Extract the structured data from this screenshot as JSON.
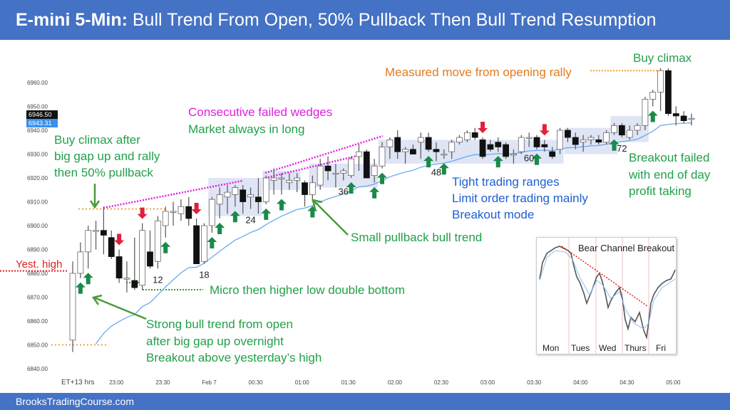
{
  "title": {
    "bold": "E-mini 5-Min:",
    "rest": " Bull Trend From Open, 50% Pullback Then Bull Trend Resumption"
  },
  "footer": "BrooksTradingCourse.com",
  "price_tags": {
    "last": "6946.50",
    "ema": "6943.31"
  },
  "colors": {
    "bull_arrow": "#1a8a4a",
    "bear_arrow": "#e0203a",
    "ema": "#6aaaf0",
    "shade": "#dfe5f5",
    "accent": "#4472c4"
  },
  "annotations": {
    "buy_climax_top": "Buy climax",
    "measured_move": "Measured move from opening rally",
    "wedges1": "Consecutive failed wedges",
    "wedges2": "Market always in long",
    "bc_after1": "Buy climax after",
    "bc_after2": "big gap up and rally",
    "bc_after3": "then 50% pullback",
    "yest_high": "Yest. high",
    "micro": "Micro then higher low double bottom",
    "strong1": "Strong bull trend from open",
    "strong2": "after big gap up overnight",
    "strong3": "Breakout above yesterday’s high",
    "spb": "Small pullback bull trend",
    "tight1": "Tight trading ranges",
    "tight2": "Limit order trading mainly",
    "tight3": "Breakout mode",
    "bo1": "Breakout failed",
    "bo2": "with end of day",
    "bo3": "profit taking"
  },
  "inset": {
    "title": "Bear Channel Breakout",
    "days": [
      "Mon",
      "Tues",
      "Wed",
      "Thurs",
      "Fri"
    ]
  },
  "chart_data": {
    "type": "candlestick",
    "title": "E-mini 5-Min",
    "ylim": [
      6835,
      6968
    ],
    "yticks": [
      "6840.00",
      "6850.00",
      "6860.00",
      "6870.00",
      "6880.00",
      "6890.00",
      "6900.00",
      "6910.00",
      "6920.00",
      "6930.00",
      "6940.00",
      "6950.00",
      "6960.00"
    ],
    "xlabel": "ET+13 hrs",
    "xticks": [
      {
        "bar": 6,
        "label": "23:00"
      },
      {
        "bar": 12,
        "label": "23:30"
      },
      {
        "bar": 18,
        "label": "Feb 7"
      },
      {
        "bar": 24,
        "label": "00:30"
      },
      {
        "bar": 30,
        "label": "01:00"
      },
      {
        "bar": 36,
        "label": "01:30"
      },
      {
        "bar": 42,
        "label": "02:00"
      },
      {
        "bar": 48,
        "label": "02:30"
      },
      {
        "bar": 54,
        "label": "03:00"
      },
      {
        "bar": 60,
        "label": "03:30"
      },
      {
        "bar": 66,
        "label": "04:00"
      },
      {
        "bar": 72,
        "label": "04:30"
      },
      {
        "bar": 78,
        "label": "05:00"
      }
    ],
    "bar_labels": [
      12,
      18,
      24,
      36,
      48,
      60,
      72
    ],
    "ohlc": [
      [
        6852,
        6885,
        6847,
        6880
      ],
      [
        6880,
        6893,
        6878,
        6889
      ],
      [
        6889,
        6900,
        6882,
        6898
      ],
      [
        6898,
        6902,
        6890,
        6898
      ],
      [
        6898,
        6908,
        6888,
        6896
      ],
      [
        6895,
        6898,
        6886,
        6887
      ],
      [
        6887,
        6890,
        6876,
        6878
      ],
      [
        6878,
        6885,
        6872,
        6878
      ],
      [
        6877,
        6895,
        6873,
        6874
      ],
      [
        6875,
        6901,
        6873,
        6898
      ],
      [
        6889,
        6898,
        6882,
        6883
      ],
      [
        6885,
        6904,
        6882,
        6902
      ],
      [
        6900,
        6908,
        6895,
        6906
      ],
      [
        6906,
        6910,
        6900,
        6906
      ],
      [
        6905,
        6911,
        6902,
        6908
      ],
      [
        6908,
        6912,
        6900,
        6903
      ],
      [
        6900,
        6903,
        6884,
        6884
      ],
      [
        6885,
        6901,
        6884,
        6900
      ],
      [
        6900,
        6912,
        6897,
        6911
      ],
      [
        6909,
        6916,
        6903,
        6913
      ],
      [
        6912,
        6917,
        6905,
        6914
      ],
      [
        6913,
        6917,
        6908,
        6916
      ],
      [
        6915,
        6917,
        6905,
        6910
      ],
      [
        6912,
        6916,
        6907,
        6913
      ],
      [
        6912,
        6920,
        6905,
        6910
      ],
      [
        6910,
        6921,
        6909,
        6920
      ],
      [
        6919,
        6924,
        6913,
        6920
      ],
      [
        6920,
        6922,
        6913,
        6920
      ],
      [
        6918,
        6922,
        6915,
        6919
      ],
      [
        6919,
        6922,
        6914,
        6920
      ],
      [
        6918,
        6919,
        6908,
        6913
      ],
      [
        6913,
        6921,
        6910,
        6918
      ],
      [
        6917,
        6928,
        6915,
        6925
      ],
      [
        6925,
        6929,
        6919,
        6923
      ],
      [
        6922,
        6926,
        6916,
        6922
      ],
      [
        6922,
        6924,
        6919,
        6923
      ],
      [
        6921,
        6929,
        6920,
        6928
      ],
      [
        6929,
        6934,
        6923,
        6931
      ],
      [
        6931,
        6932,
        6920,
        6920
      ],
      [
        6921,
        6928,
        6918,
        6925
      ],
      [
        6925,
        6935,
        6924,
        6933
      ],
      [
        6933,
        6937,
        6928,
        6936
      ],
      [
        6937,
        6940,
        6928,
        6931
      ],
      [
        6931,
        6933,
        6926,
        6932
      ],
      [
        6932,
        6934,
        6930,
        6930
      ],
      [
        6935,
        6939,
        6928,
        6937
      ],
      [
        6937,
        6939,
        6931,
        6932
      ],
      [
        6932,
        6935,
        6927,
        6931
      ],
      [
        6930,
        6932,
        6928,
        6930
      ],
      [
        6931,
        6936,
        6928,
        6935
      ],
      [
        6935,
        6938,
        6934,
        6937
      ],
      [
        6936,
        6940,
        6935,
        6939
      ],
      [
        6939,
        6941,
        6936,
        6937
      ],
      [
        6936,
        6937,
        6928,
        6929
      ],
      [
        6934,
        6936,
        6931,
        6932
      ],
      [
        6935,
        6937,
        6931,
        6933
      ],
      [
        6934,
        6935,
        6928,
        6929
      ],
      [
        6930,
        6932,
        6926,
        6930
      ],
      [
        6931,
        6938,
        6930,
        6937
      ],
      [
        6937,
        6939,
        6933,
        6937
      ],
      [
        6937,
        6938,
        6932,
        6933
      ],
      [
        6934,
        6936,
        6931,
        6933
      ],
      [
        6931,
        6933,
        6928,
        6929
      ],
      [
        6932,
        6941,
        6930,
        6940
      ],
      [
        6940,
        6941,
        6935,
        6937
      ],
      [
        6937,
        6939,
        6932,
        6934
      ],
      [
        6935,
        6938,
        6931,
        6936
      ],
      [
        6936,
        6938,
        6934,
        6937
      ],
      [
        6936,
        6938,
        6934,
        6935
      ],
      [
        6935,
        6940,
        6934,
        6939
      ],
      [
        6939,
        6943,
        6938,
        6942
      ],
      [
        6942,
        6943,
        6937,
        6938
      ],
      [
        6937,
        6942,
        6936,
        6940
      ],
      [
        6940,
        6943,
        6938,
        6942
      ],
      [
        6942,
        6954,
        6940,
        6953
      ],
      [
        6953,
        6957,
        6950,
        6956
      ],
      [
        6956,
        6966,
        6948,
        6965
      ],
      [
        6965,
        6966,
        6946,
        6947
      ],
      [
        6947,
        6950,
        6942,
        6946
      ],
      [
        6946,
        6948,
        6943,
        6944
      ],
      [
        6945,
        6947,
        6942,
        6945
      ]
    ],
    "bull_arrows": [
      2,
      3,
      13,
      19,
      20,
      22,
      26,
      28,
      32,
      37,
      40,
      41,
      47,
      49,
      56,
      61,
      71,
      76
    ],
    "bear_arrows": [
      7,
      10,
      17,
      54,
      62
    ],
    "ranges": [
      {
        "from": 19,
        "to": 25,
        "low": 6904,
        "high": 6920
      },
      {
        "from": 26,
        "to": 30,
        "low": 6915,
        "high": 6923
      },
      {
        "from": 32,
        "to": 40,
        "low": 6916,
        "high": 6926
      },
      {
        "from": 41,
        "to": 64,
        "low": 6926,
        "high": 6936
      },
      {
        "from": 65,
        "to": 71,
        "low": 6930,
        "high": 6941
      },
      {
        "from": 71,
        "to": 75,
        "low": 6935,
        "high": 6946
      }
    ],
    "ema_period": 20,
    "levels": {
      "yest_high": 6881,
      "gap_open": 6850,
      "climax_high": 6907,
      "measured_move": 6965
    }
  }
}
